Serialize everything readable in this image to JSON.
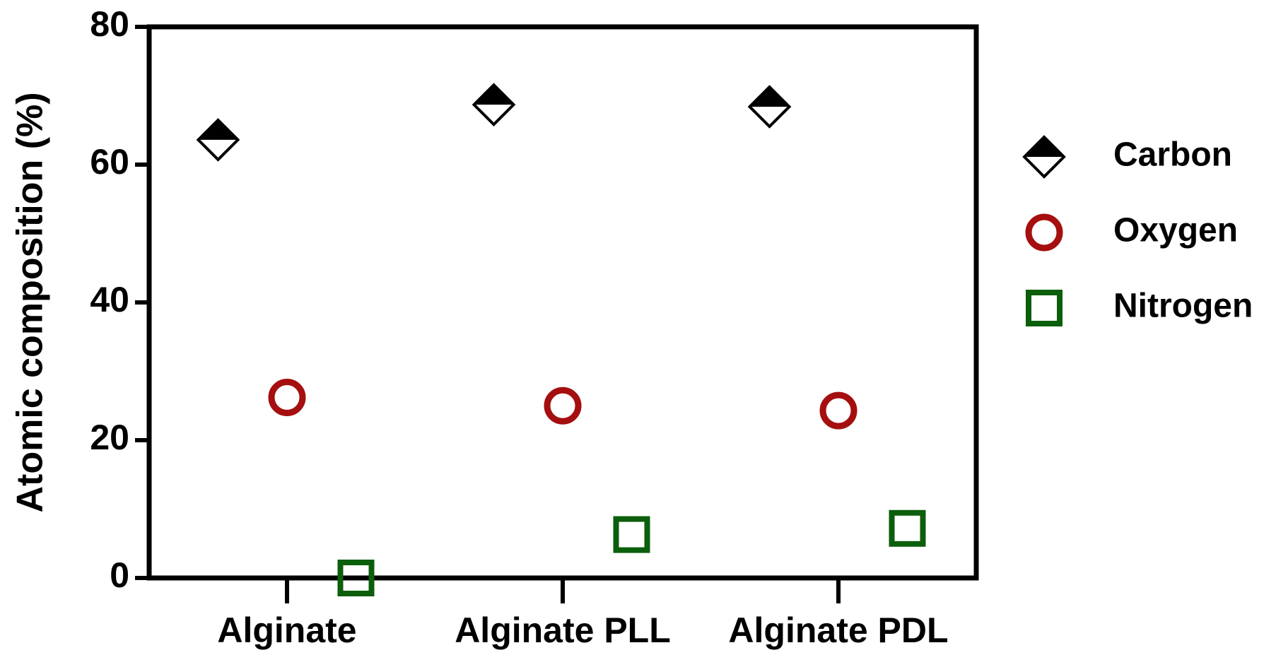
{
  "chart_data": {
    "type": "scatter",
    "ylabel": "Atomic composition (%)",
    "categories": [
      "Alginate",
      "Alginate PLL",
      "Alginate PDL"
    ],
    "series": [
      {
        "name": "Carbon",
        "color": "#000000",
        "marker": "half-diamond",
        "values": [
          63.6,
          68.7,
          68.4
        ]
      },
      {
        "name": "Oxygen",
        "color": "#a50f0f",
        "marker": "circle",
        "values": [
          26.2,
          25.0,
          24.3
        ]
      },
      {
        "name": "Nitrogen",
        "color": "#0b5e0b",
        "marker": "square",
        "values": [
          0,
          6.3,
          7.2
        ]
      }
    ],
    "ylim": [
      0,
      80
    ],
    "yticks": [
      0,
      20,
      40,
      60,
      80
    ],
    "grid": false,
    "legend": "right"
  }
}
